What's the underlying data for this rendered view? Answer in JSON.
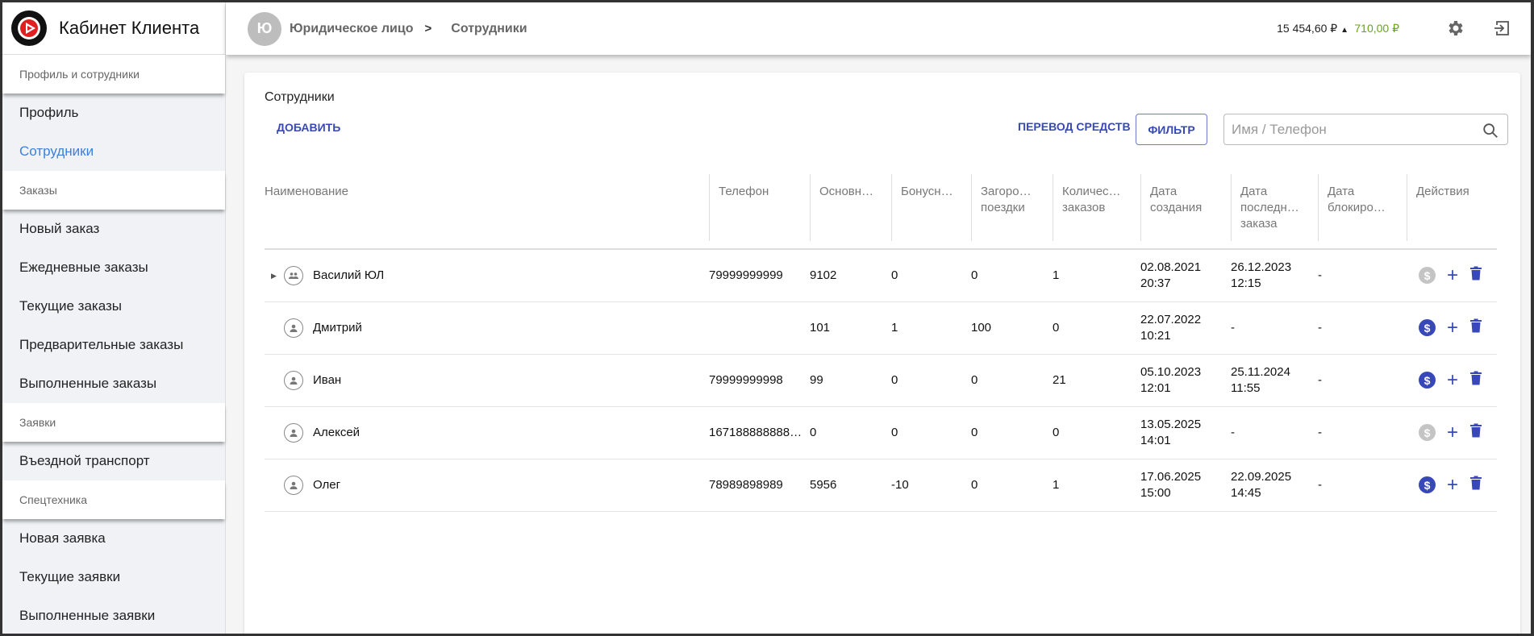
{
  "app": {
    "title": "Кабинет Клиента"
  },
  "sidebar": {
    "sections": [
      {
        "label": "Профиль и сотрудники",
        "items": [
          {
            "label": "Профиль",
            "active": false
          },
          {
            "label": "Сотрудники",
            "active": true
          }
        ]
      },
      {
        "label": "Заказы",
        "items": [
          {
            "label": "Новый заказ"
          },
          {
            "label": "Ежедневные заказы"
          },
          {
            "label": "Текущие заказы"
          },
          {
            "label": "Предварительные заказы"
          },
          {
            "label": "Выполненные заказы"
          }
        ]
      },
      {
        "label": "Заявки",
        "items": [
          {
            "label": "Въездной транспорт"
          }
        ]
      },
      {
        "label": "Спецтехника",
        "items": [
          {
            "label": "Новая заявка"
          },
          {
            "label": "Текущие заявки"
          },
          {
            "label": "Выполненные заявки"
          }
        ]
      }
    ]
  },
  "header": {
    "avatar": "Ю",
    "breadcrumb": [
      "Юридическое лицо",
      "Сотрудники"
    ],
    "separator": ">",
    "balance": "15 454,60 ₽",
    "bonus": "710,00 ₽",
    "bonus_color": "#6aa21a"
  },
  "main": {
    "title": "Сотрудники",
    "add_label": "ДОБАВИТЬ",
    "transfer_label": "ПЕРЕВОД СРЕДСТВ",
    "filter_label": "ФИЛЬТР",
    "search_placeholder": "Имя / Телефон",
    "accent": "#3848b8",
    "columns": [
      "Наименование",
      "Телефон",
      "Основн…",
      "Бонусн…",
      "Загоро… поездки",
      "Количес… заказов",
      "Дата создания",
      "Дата последн… заказа",
      "Дата блокиро…",
      "Действия"
    ],
    "rows": [
      {
        "name": "Василий ЮЛ",
        "group": true,
        "phone": "79999999999",
        "main": "9102",
        "bonus": "0",
        "trips": "0",
        "orders": "1",
        "created": [
          "02.08.2021",
          "20:37"
        ],
        "last": [
          "26.12.2023",
          "12:15"
        ],
        "blocked": "-",
        "transfer_enabled": false
      },
      {
        "name": "Дмитрий",
        "group": false,
        "phone": "",
        "main": "101",
        "bonus": "1",
        "trips": "100",
        "orders": "0",
        "created": [
          "22.07.2022",
          "10:21"
        ],
        "last": [
          "-",
          ""
        ],
        "blocked": "-",
        "transfer_enabled": true
      },
      {
        "name": "Иван",
        "group": false,
        "phone": "79999999998",
        "main": "99",
        "bonus": "0",
        "trips": "0",
        "orders": "21",
        "created": [
          "05.10.2023",
          "12:01"
        ],
        "last": [
          "25.11.2024",
          "11:55"
        ],
        "blocked": "-",
        "transfer_enabled": true
      },
      {
        "name": "Алексей",
        "group": false,
        "phone": "167188888888…",
        "main": "0",
        "bonus": "0",
        "trips": "0",
        "orders": "0",
        "created": [
          "13.05.2025",
          "14:01"
        ],
        "last": [
          "-",
          ""
        ],
        "blocked": "-",
        "transfer_enabled": false
      },
      {
        "name": "Олег",
        "group": false,
        "phone": "78989898989",
        "main": "5956",
        "bonus": "-10",
        "trips": "0",
        "orders": "1",
        "created": [
          "17.06.2025",
          "15:00"
        ],
        "last": [
          "22.09.2025",
          "14:45"
        ],
        "blocked": "-",
        "transfer_enabled": true
      }
    ]
  }
}
